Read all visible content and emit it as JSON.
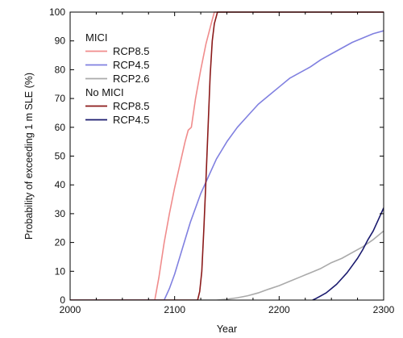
{
  "chart_data": {
    "type": "line",
    "xlabel": "Year",
    "ylabel": "Probability of exceeding 1 m SLE (%)",
    "xlim": [
      2000,
      2300
    ],
    "ylim": [
      0,
      100
    ],
    "x_ticks": [
      2000,
      2100,
      2200,
      2300
    ],
    "y_ticks": [
      0,
      10,
      20,
      30,
      40,
      50,
      60,
      70,
      80,
      90,
      100
    ],
    "grid": false,
    "legend_placement": "top-left",
    "legend_groups": [
      {
        "title": "MICI",
        "entries": [
          "RCP8.5",
          "RCP4.5",
          "RCP2.6"
        ]
      },
      {
        "title": "No MICI",
        "entries": [
          "RCP8.5",
          "RCP4.5"
        ]
      }
    ],
    "series": [
      {
        "name": "RCP8.5",
        "group": "MICI",
        "color": "#f08c8c",
        "x": [
          2000,
          2081,
          2085,
          2090,
          2095,
          2100,
          2105,
          2110,
          2113,
          2116,
          2120,
          2125,
          2130,
          2135,
          2138,
          2300
        ],
        "y": [
          0,
          0,
          8,
          20,
          30,
          39,
          47,
          55,
          59,
          60,
          70,
          80,
          89,
          96,
          100,
          100
        ]
      },
      {
        "name": "RCP4.5",
        "group": "MICI",
        "color": "#8080e0",
        "x": [
          2000,
          2090,
          2095,
          2100,
          2105,
          2110,
          2115,
          2120,
          2125,
          2130,
          2135,
          2140,
          2145,
          2150,
          2160,
          2170,
          2180,
          2190,
          2200,
          2210,
          2220,
          2230,
          2240,
          2250,
          2260,
          2270,
          2280,
          2290,
          2300
        ],
        "y": [
          0,
          0,
          4,
          9,
          15,
          21,
          27,
          32,
          37,
          41,
          45,
          49,
          52,
          55,
          60,
          64,
          68,
          71,
          74,
          77,
          79,
          81,
          83.5,
          85.5,
          87.5,
          89.5,
          91,
          92.5,
          93.5
        ]
      },
      {
        "name": "RCP2.6",
        "group": "MICI",
        "color": "#aaaaaa",
        "x": [
          2000,
          2140,
          2150,
          2160,
          2170,
          2180,
          2190,
          2200,
          2210,
          2220,
          2230,
          2240,
          2250,
          2260,
          2270,
          2280,
          2290,
          2300
        ],
        "y": [
          0,
          0,
          0.3,
          0.8,
          1.5,
          2.5,
          3.8,
          5,
          6.5,
          8,
          9.5,
          11,
          13,
          14.5,
          16.5,
          18.5,
          21,
          24
        ]
      },
      {
        "name": "RCP8.5",
        "group": "No MICI",
        "color": "#8b1a1a",
        "x": [
          2000,
          2122,
          2124,
          2126,
          2128,
          2130,
          2132,
          2134,
          2136,
          2138,
          2141,
          2300
        ],
        "y": [
          0,
          0,
          3,
          10,
          25,
          42,
          60,
          78,
          90,
          96,
          100,
          100
        ]
      },
      {
        "name": "RCP4.5",
        "group": "No MICI",
        "color": "#1a1a6e",
        "x": [
          2232,
          2235,
          2240,
          2245,
          2250,
          2255,
          2260,
          2265,
          2270,
          2275,
          2280,
          2285,
          2290,
          2295,
          2300
        ],
        "y": [
          0,
          0.5,
          1.5,
          2.5,
          4,
          5.5,
          7.5,
          9.5,
          12,
          14.5,
          17.5,
          21,
          24,
          28,
          32
        ]
      }
    ]
  }
}
